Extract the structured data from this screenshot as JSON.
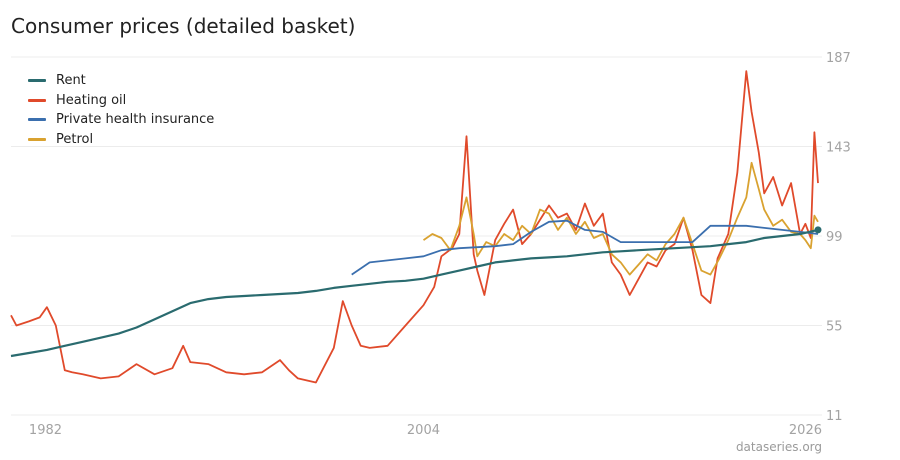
{
  "chart_data": {
    "type": "line",
    "title": "Consumer prices (detailed basket)",
    "source": "dataseries.org",
    "x_ticks": [
      "1982",
      "2004",
      "2026"
    ],
    "y_ticks": [
      11,
      55,
      99,
      143,
      187
    ],
    "xlim": [
      "1981",
      "2026"
    ],
    "ylim": [
      11,
      187
    ],
    "y_axis_side": "right",
    "grid": "horizontal",
    "legend_position": "top-left",
    "series": [
      {
        "name": "Rent",
        "color": "#2a6b6f",
        "x": [
          "1981",
          "1982",
          "1983",
          "1984",
          "1985",
          "1986",
          "1987",
          "1988",
          "1989",
          "1990",
          "1991",
          "1992",
          "1993",
          "1994",
          "1995",
          "1996",
          "1997",
          "1998",
          "1999",
          "2000",
          "2001",
          "2002",
          "2003",
          "2004",
          "2005",
          "2006",
          "2007",
          "2008",
          "2009",
          "2010",
          "2011",
          "2012",
          "2013",
          "2014",
          "2015",
          "2016",
          "2017",
          "2018",
          "2019",
          "2020",
          "2021",
          "2022",
          "2023",
          "2024",
          "2025",
          "2026"
        ],
        "values": [
          40,
          41.5,
          43,
          45,
          47,
          49,
          51,
          54,
          58,
          62,
          66,
          68,
          69,
          69.5,
          70,
          70.5,
          71,
          72,
          73.5,
          74.5,
          75.5,
          76.5,
          77,
          78,
          80,
          82,
          84,
          86,
          87,
          88,
          88.5,
          89,
          90,
          91,
          91.5,
          92,
          92.5,
          93,
          93.5,
          94,
          95,
          96,
          98,
          99,
          100,
          102
        ]
      },
      {
        "name": "Heating oil",
        "color": "#e04a2b",
        "x": [
          "1981",
          "1981.3",
          "1982",
          "1982.6",
          "1983",
          "1983.5",
          "1984",
          "1984.4",
          "1985",
          "1986",
          "1987",
          "1988",
          "1989",
          "1990",
          "1990.6",
          "1991",
          "1992",
          "1993",
          "1994",
          "1995",
          "1996",
          "1996.5",
          "1997",
          "1998",
          "1999",
          "1999.5",
          "2000",
          "2000.5",
          "2001",
          "2002",
          "2003",
          "2004",
          "2004.6",
          "2005",
          "2005.6",
          "2006",
          "2006.4",
          "2006.8",
          "2007",
          "2007.4",
          "2008",
          "2008.5",
          "2009",
          "2009.5",
          "2010",
          "2011",
          "2011.5",
          "2012",
          "2012.5",
          "2013",
          "2013.5",
          "2014",
          "2014.5",
          "2015",
          "2015.5",
          "2016",
          "2016.5",
          "2017",
          "2017.5",
          "2018",
          "2018.5",
          "2019",
          "2019.5",
          "2020",
          "2020.4",
          "2021",
          "2021.5",
          "2022",
          "2022.3",
          "2022.7",
          "2023",
          "2023.5",
          "2024",
          "2024.5",
          "2025",
          "2025.3",
          "2025.6",
          "2025.8",
          "2026"
        ],
        "values": [
          60,
          55,
          57,
          59,
          64,
          55,
          33,
          32,
          31,
          29,
          30,
          36,
          31,
          34,
          45,
          37,
          36,
          32,
          31,
          32,
          38,
          33,
          29,
          27,
          44,
          67,
          55,
          45,
          44,
          45,
          55,
          65,
          74,
          89,
          93,
          100,
          148,
          90,
          82,
          70,
          97,
          105,
          112,
          95,
          100,
          114,
          108,
          110,
          102,
          115,
          104,
          110,
          86,
          80,
          70,
          78,
          86,
          84,
          92,
          95,
          108,
          92,
          70,
          66,
          88,
          100,
          130,
          180,
          160,
          140,
          120,
          128,
          114,
          125,
          100,
          105,
          98,
          150,
          125
        ]
      },
      {
        "name": "Private health insurance",
        "color": "#3b6fae",
        "x": [
          "2000",
          "2000.5",
          "2001",
          "2002",
          "2003",
          "2004",
          "2005",
          "2006",
          "2007",
          "2008",
          "2009",
          "2010",
          "2011",
          "2012",
          "2013",
          "2014",
          "2015",
          "2016",
          "2017",
          "2018",
          "2019",
          "2020",
          "2021",
          "2022",
          "2023",
          "2024",
          "2025",
          "2026"
        ],
        "values": [
          80,
          83,
          86,
          87,
          88,
          89,
          92,
          93,
          93.5,
          94,
          95,
          101,
          106,
          106.5,
          102,
          101,
          96,
          96,
          96,
          96,
          96,
          104,
          104,
          104,
          103,
          102,
          101,
          100
        ]
      },
      {
        "name": "Petrol",
        "color": "#d9a230",
        "x": [
          "2004",
          "2004.5",
          "2005",
          "2005.5",
          "2006",
          "2006.4",
          "2006.8",
          "2007",
          "2007.5",
          "2008",
          "2008.5",
          "2009",
          "2009.5",
          "2010",
          "2010.5",
          "2011",
          "2011.5",
          "2012",
          "2012.5",
          "2013",
          "2013.5",
          "2014",
          "2014.5",
          "2015",
          "2015.5",
          "2016",
          "2016.5",
          "2017",
          "2017.5",
          "2018",
          "2018.5",
          "2019",
          "2019.5",
          "2020",
          "2020.5",
          "2021",
          "2021.5",
          "2022",
          "2022.3",
          "2022.7",
          "2023",
          "2023.5",
          "2024",
          "2024.5",
          "2025",
          "2025.3",
          "2025.6",
          "2025.8",
          "2026"
        ],
        "values": [
          97,
          100,
          98,
          92,
          104,
          118,
          100,
          89,
          96,
          94,
          100,
          97,
          104,
          100,
          112,
          110,
          102,
          108,
          100,
          106,
          98,
          100,
          90,
          86,
          80,
          85,
          90,
          87,
          95,
          100,
          108,
          95,
          82,
          80,
          88,
          97,
          108,
          118,
          135,
          122,
          112,
          104,
          107,
          101,
          100,
          97,
          93,
          109,
          106
        ]
      }
    ]
  }
}
